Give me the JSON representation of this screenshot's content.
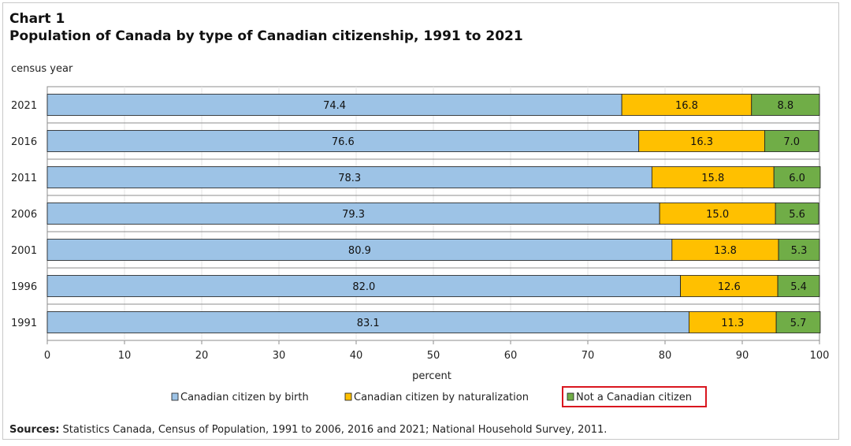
{
  "header": {
    "chart_label": "Chart 1",
    "title": "Population  of Canada by type of Canadian citizenship,  1991 to 2021"
  },
  "chart_data": {
    "type": "bar",
    "orientation": "horizontal",
    "stacked": true,
    "ylabel": "census year",
    "xlabel": "percent",
    "xlim": [
      0,
      100
    ],
    "x_ticks": [
      "0",
      "10",
      "20",
      "30",
      "40",
      "50",
      "60",
      "70",
      "80",
      "90",
      "100"
    ],
    "categories": [
      "2021",
      "2016",
      "2011",
      "2006",
      "2001",
      "1996",
      "1991"
    ],
    "series": [
      {
        "name": "Canadian citizen by birth",
        "color": "#9dc3e6",
        "values": [
          74.4,
          76.6,
          78.3,
          79.3,
          80.9,
          82.0,
          83.1
        ]
      },
      {
        "name": "Canadian citizen by naturalization",
        "color": "#ffc000",
        "values": [
          16.8,
          16.3,
          15.8,
          15.0,
          13.8,
          12.6,
          11.3
        ]
      },
      {
        "name": "Not a Canadian citizen",
        "color": "#70ad47",
        "values": [
          8.8,
          7.0,
          6.0,
          5.6,
          5.3,
          5.4,
          5.7
        ]
      }
    ],
    "data_labels": [
      [
        "74.4",
        "76.6",
        "78.3",
        "79.3",
        "80.9",
        "82.0",
        "83.1"
      ],
      [
        "16.8",
        "16.3",
        "15.8",
        "15.0",
        "13.8",
        "12.6",
        "11.3"
      ],
      [
        "8.8",
        "7.0",
        "6.0",
        "5.6",
        "5.3",
        "5.4",
        "5.7"
      ]
    ],
    "legend_position": "bottom",
    "grid": true,
    "highlighted_legend_item": "Not a Canadian citizen",
    "highlight_color": "#d9161f"
  },
  "footer": {
    "sources_label": "Sources:",
    "sources_text": " Statistics Canada, Census of Population, 1991 to 2006,  2016 and 2021;  National Household Survey, 2011."
  }
}
